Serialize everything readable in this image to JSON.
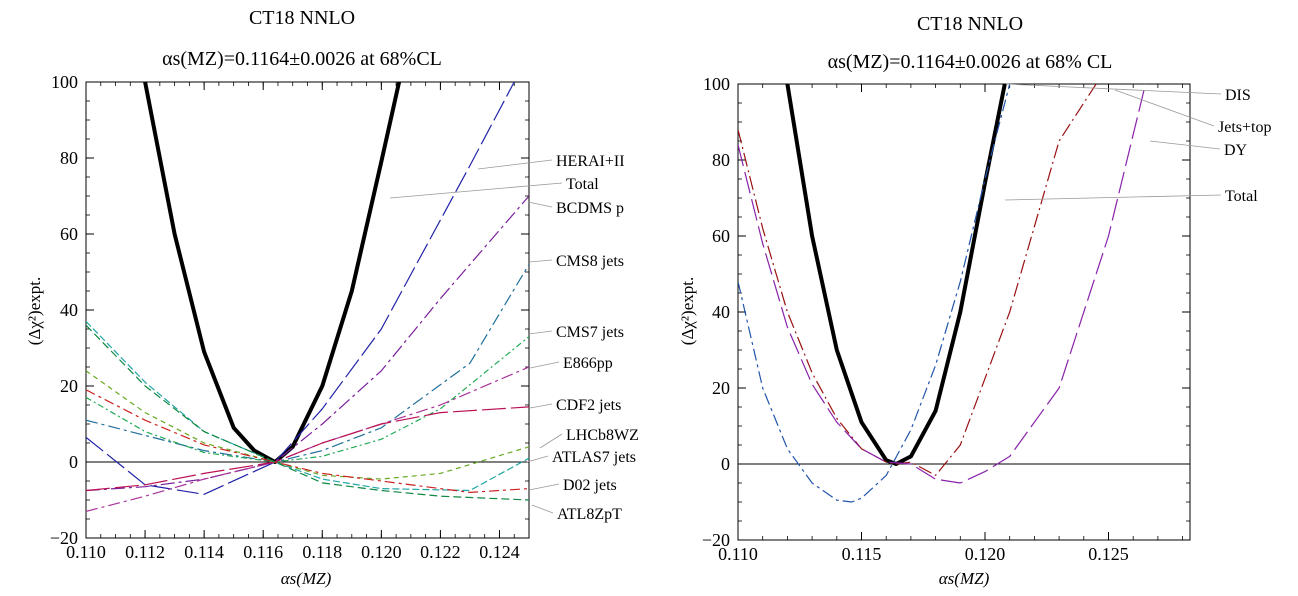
{
  "chart_data": [
    {
      "type": "line",
      "title_line1": "CT18 NNLO",
      "title_line2": "αs(MZ)=0.1164±0.0026 at 68%CL",
      "xlabel": "αs(MZ)",
      "ylabel": "(Δχ²)expt.",
      "xlim": [
        0.11,
        0.125
      ],
      "ylim": [
        -20,
        100
      ],
      "xticks": [
        "0.110",
        "0.112",
        "0.114",
        "0.116",
        "0.118",
        "0.120",
        "0.122",
        "0.124"
      ],
      "yticks": [
        "−20",
        "0",
        "20",
        "40",
        "60",
        "80",
        "100"
      ],
      "legend_placement": "right (callout labels)",
      "series": [
        {
          "name": "Total",
          "color": "#000000",
          "x": [
            0.112,
            0.113,
            0.114,
            0.115,
            0.1157,
            0.1164,
            0.117,
            0.118,
            0.119,
            0.12,
            0.1206
          ],
          "y": [
            100,
            60,
            29,
            9,
            3,
            0,
            4,
            20,
            45,
            79,
            100
          ]
        },
        {
          "name": "HERAI+II",
          "color": "#2222aa",
          "x": [
            0.11,
            0.112,
            0.114,
            0.1164,
            0.118,
            0.12,
            0.123,
            0.1245
          ],
          "y": [
            6.5,
            -6,
            -8.5,
            0,
            14,
            35,
            78,
            100
          ]
        },
        {
          "name": "BCDMS p",
          "color": "#7a1f9a",
          "x": [
            0.11,
            0.112,
            0.114,
            0.1164,
            0.118,
            0.12,
            0.122,
            0.125
          ],
          "y": [
            -7.5,
            -6.5,
            -4.5,
            0,
            10,
            24,
            43,
            70
          ]
        },
        {
          "name": "CMS8 jets",
          "color": "#1f6f9a",
          "x": [
            0.11,
            0.112,
            0.114,
            0.1164,
            0.118,
            0.12,
            0.123,
            0.125
          ],
          "y": [
            11,
            7,
            3,
            0,
            3,
            9,
            26,
            52
          ]
        },
        {
          "name": "CMS7 jets",
          "color": "#22aa55",
          "x": [
            0.11,
            0.112,
            0.114,
            0.1164,
            0.118,
            0.12,
            0.122,
            0.125
          ],
          "y": [
            17,
            8,
            2.5,
            0,
            1.5,
            6,
            14,
            33
          ]
        },
        {
          "name": "E866pp",
          "color": "#aa3399",
          "x": [
            0.11,
            0.112,
            0.114,
            0.1164,
            0.118,
            0.12,
            0.122,
            0.125
          ],
          "y": [
            -13,
            -9,
            -4.5,
            0,
            5,
            10,
            15,
            25
          ]
        },
        {
          "name": "CDF2 jets",
          "color": "#bb1155",
          "x": [
            0.11,
            0.112,
            0.114,
            0.1164,
            0.118,
            0.12,
            0.122,
            0.125
          ],
          "y": [
            -7.5,
            -6,
            -3,
            0,
            5,
            10,
            13,
            14.5
          ]
        },
        {
          "name": "LHCb8WZ",
          "color": "#66aa22",
          "x": [
            0.11,
            0.112,
            0.114,
            0.1164,
            0.118,
            0.12,
            0.122,
            0.125
          ],
          "y": [
            24,
            13,
            5,
            0,
            -3.5,
            -4.5,
            -3,
            4
          ]
        },
        {
          "name": "ATLAS7 jets",
          "color": "#22a5a5",
          "x": [
            0.11,
            0.112,
            0.114,
            0.1164,
            0.118,
            0.12,
            0.123,
            0.125
          ],
          "y": [
            37,
            21,
            8,
            0,
            -4.5,
            -7,
            -7.5,
            1
          ]
        },
        {
          "name": "D02 jets",
          "color": "#cc2222",
          "x": [
            0.11,
            0.112,
            0.114,
            0.1164,
            0.118,
            0.12,
            0.123,
            0.125
          ],
          "y": [
            19,
            11,
            4.5,
            0,
            -3,
            -5,
            -8,
            -7
          ]
        },
        {
          "name": "ATL8ZpT",
          "color": "#118844",
          "x": [
            0.11,
            0.112,
            0.114,
            0.1164,
            0.118,
            0.12,
            0.122,
            0.125
          ],
          "y": [
            36,
            20,
            8,
            0,
            -5.5,
            -7.5,
            -9,
            -10
          ]
        }
      ]
    },
    {
      "type": "line",
      "title_line1": "CT18 NNLO",
      "title_line2": "αs(MZ)=0.1164±0.0026 at 68% CL",
      "xlabel": "αs(MZ)",
      "ylabel": "(Δχ²)expt.",
      "xlim": [
        0.11,
        0.1283
      ],
      "ylim": [
        -20,
        100
      ],
      "xticks": [
        "0.110",
        "0.115",
        "0.120",
        "0.125"
      ],
      "yticks": [
        "−20",
        "0",
        "20",
        "40",
        "60",
        "80",
        "100"
      ],
      "legend_placement": "right (callout labels)",
      "series": [
        {
          "name": "Total",
          "color": "#000000",
          "x": [
            0.112,
            0.113,
            0.114,
            0.115,
            0.116,
            0.1164,
            0.117,
            0.118,
            0.119,
            0.12,
            0.1208
          ],
          "y": [
            100,
            60,
            30,
            11,
            1,
            0,
            2,
            14,
            40,
            74,
            100
          ]
        },
        {
          "name": "DIS",
          "color": "#2255aa",
          "x": [
            0.11,
            0.111,
            0.112,
            0.113,
            0.114,
            0.1146,
            0.115,
            0.116,
            0.117,
            0.118,
            0.119,
            0.12,
            0.121
          ],
          "y": [
            48,
            20,
            4,
            -5,
            -9.5,
            -10,
            -9,
            -3,
            9,
            26,
            48,
            75,
            100
          ]
        },
        {
          "name": "Jets+top",
          "color": "#991111",
          "x": [
            0.11,
            0.111,
            0.112,
            0.113,
            0.114,
            0.115,
            0.116,
            0.1164,
            0.117,
            0.118,
            0.119,
            0.121,
            0.123,
            0.1245
          ],
          "y": [
            88,
            62,
            40,
            24,
            12,
            4,
            0.5,
            0,
            0.5,
            -3,
            5,
            40,
            85,
            100
          ]
        },
        {
          "name": "DY",
          "color": "#8822aa",
          "x": [
            0.11,
            0.111,
            0.112,
            0.113,
            0.114,
            0.115,
            0.116,
            0.117,
            0.118,
            0.119,
            0.12,
            0.121,
            0.123,
            0.125,
            0.1265
          ],
          "y": [
            84,
            58,
            36,
            21,
            11,
            4,
            0.5,
            0,
            -4,
            -5,
            -2,
            2,
            20,
            60,
            100
          ]
        }
      ]
    }
  ]
}
